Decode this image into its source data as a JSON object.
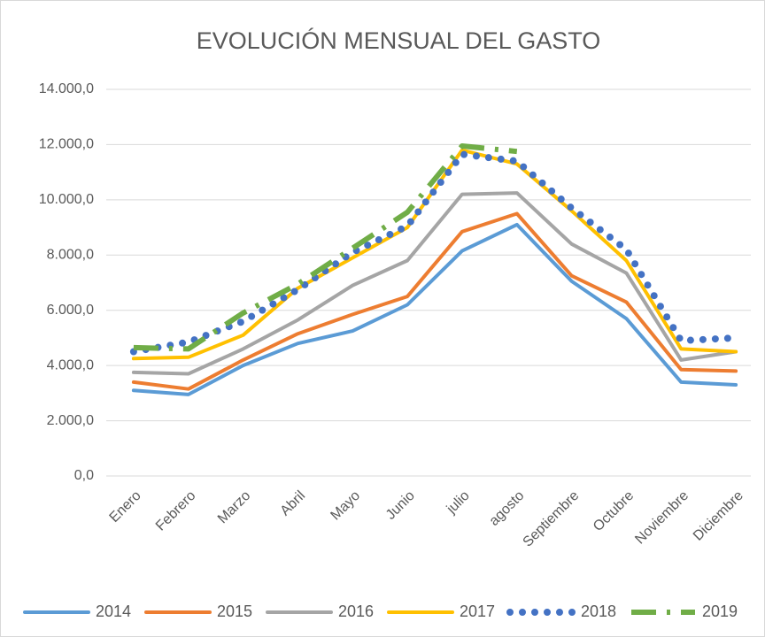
{
  "chart_data": {
    "type": "line",
    "title": "EVOLUCIÓN MENSUAL DEL GASTO",
    "categories": [
      "Enero",
      "Febrero",
      "Marzo",
      "Abril",
      "Mayo",
      "Junio",
      "julio",
      "agosto",
      "Septiembre",
      "Octubre",
      "Noviembre",
      "Diciembre"
    ],
    "series": [
      {
        "name": "2014",
        "color": "#5b9bd5",
        "line_style": "solid",
        "values": [
          3100,
          2950,
          4000,
          4800,
          5250,
          6200,
          8150,
          9100,
          7050,
          5700,
          3400,
          3300
        ]
      },
      {
        "name": "2015",
        "color": "#ed7d31",
        "line_style": "solid",
        "values": [
          3400,
          3150,
          4200,
          5150,
          5850,
          6500,
          8850,
          9500,
          7250,
          6300,
          3850,
          3800
        ]
      },
      {
        "name": "2016",
        "color": "#a5a5a5",
        "line_style": "solid",
        "values": [
          3750,
          3700,
          4600,
          5650,
          6900,
          7800,
          10200,
          10250,
          8400,
          7350,
          4200,
          4500
        ]
      },
      {
        "name": "2017",
        "color": "#ffc000",
        "line_style": "solid",
        "values": [
          4250,
          4300,
          5100,
          6800,
          7900,
          9000,
          11800,
          11300,
          9600,
          7800,
          4600,
          4500
        ]
      },
      {
        "name": "2018",
        "color": "#4472c4",
        "line_style": "round-dot",
        "values": [
          4500,
          4850,
          5600,
          6750,
          8100,
          9050,
          11650,
          11400,
          9700,
          8200,
          4900,
          5000
        ]
      },
      {
        "name": "2019",
        "color": "#70ad47",
        "line_style": "dash-dot",
        "values": [
          4650,
          4600,
          5900,
          6950,
          8250,
          9550,
          11950,
          11750,
          null,
          null,
          null,
          null
        ]
      }
    ],
    "ylim": [
      0,
      14000
    ],
    "yticks": [
      {
        "value": 0,
        "label": "0,0"
      },
      {
        "value": 2000,
        "label": "2.000,0"
      },
      {
        "value": 4000,
        "label": "4.000,0"
      },
      {
        "value": 6000,
        "label": "6.000,0"
      },
      {
        "value": 8000,
        "label": "8.000,0"
      },
      {
        "value": 10000,
        "label": "10.000,0"
      },
      {
        "value": 12000,
        "label": "12.000,0"
      },
      {
        "value": 14000,
        "label": "14.000,0"
      }
    ],
    "grid": true,
    "legend": "bottom"
  }
}
